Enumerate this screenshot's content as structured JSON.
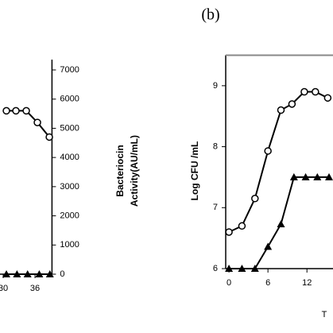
{
  "chart_data": [
    {
      "type": "line",
      "ylabel": [
        "Bacteriocin",
        "Activity(AU/mL)"
      ],
      "xlim": [
        24,
        39.2
      ],
      "xticks": [
        30,
        36
      ],
      "ylim": [
        0,
        7000
      ],
      "yticks": [
        0,
        1000,
        2000,
        3000,
        4000,
        5000,
        6000,
        7000
      ],
      "yaxis_side": "right",
      "series": [
        {
          "color": "#000000",
          "marker": "circle",
          "x": [
            30.6,
            32.4,
            34.35,
            36.45,
            38.7
          ],
          "values": [
            5600,
            5600,
            5600,
            5200,
            4700
          ]
        },
        {
          "color": "#000000",
          "marker": "triangle",
          "x": [
            30.6,
            32.6,
            34.6,
            36.8,
            38.8
          ],
          "values": [
            0,
            0,
            0,
            0,
            0
          ]
        }
      ]
    },
    {
      "type": "line",
      "title": "(b)",
      "ylabel": [
        "Log CFU /mL"
      ],
      "xlabel": "T",
      "xlim": [
        -0.5,
        16.5
      ],
      "xticks": [
        0,
        6,
        12
      ],
      "ylim": [
        6,
        9.5
      ],
      "yticks": [
        6,
        7,
        8,
        9
      ],
      "yaxis_side": "left",
      "series": [
        {
          "color": "#000000",
          "marker": "circle",
          "x": [
            0,
            2,
            4,
            6,
            8,
            9.7,
            11.6,
            13.3,
            15.2
          ],
          "values": [
            6.6,
            6.7,
            7.15,
            7.93,
            8.6,
            8.7,
            8.9,
            8.9,
            8.8
          ]
        },
        {
          "color": "#000000",
          "marker": "triangle",
          "x": [
            0,
            2,
            4,
            6,
            8,
            10,
            11.8,
            13.6,
            15.4
          ],
          "values": [
            6,
            6,
            6,
            6.36,
            6.73,
            7.5,
            7.5,
            7.5,
            7.5
          ]
        }
      ]
    }
  ]
}
